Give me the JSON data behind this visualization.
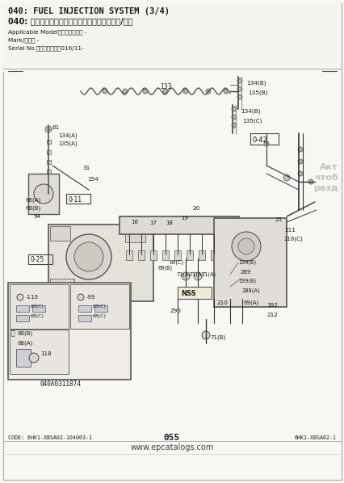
{
  "title_line1": "040: FUEL INJECTION SYSTEM (3/4)",
  "title_line2": "040: フューエルインジェクションシステム（３/４）",
  "subtitle1": "Applicable Model（適用機種）： -",
  "subtitle2": "Mark/記号： -",
  "subtitle3": "Serial No.（通用号機）：016/11-",
  "page_num": "055",
  "code_left": "CODE: 6HK1-XBSA02-104003-1",
  "code_right": "6HK1-XBSA02-1",
  "watermark": "www.epcatalogs.com",
  "part_num": "040A0311874",
  "bg_color": "#f8f7f4",
  "text_color": "#1a1a1a",
  "overlay_text": "Акт\nчтоб\nразд"
}
